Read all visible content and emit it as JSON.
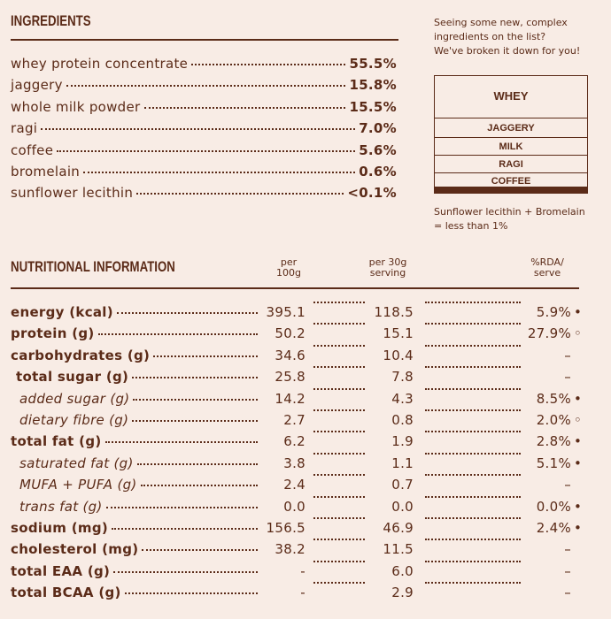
{
  "ingredients": {
    "title": "INGREDIENTS",
    "items": [
      {
        "name": "whey protein concentrate",
        "value": "55.5%"
      },
      {
        "name": "jaggery",
        "value": "15.8%"
      },
      {
        "name": "whole milk powder",
        "value": "15.5%"
      },
      {
        "name": "ragi",
        "value": "7.0%"
      },
      {
        "name": "coffee",
        "value": "5.6%"
      },
      {
        "name": "bromelain",
        "value": "0.6%"
      },
      {
        "name": "sunflower lecithin",
        "value": "<0.1%"
      }
    ]
  },
  "note": {
    "lines": [
      "Seeing some new, complex",
      "ingredients on the list?",
      "We've broken it down for you!"
    ]
  },
  "diagram": {
    "top": "WHEY",
    "layers": [
      "JAGGERY",
      "MILK",
      "RAGI",
      "COFFEE"
    ],
    "caption": [
      "Sunflower lecithin + Bromelain",
      "= less than 1%"
    ]
  },
  "nutrition": {
    "title": "NUTRITIONAL INFORMATION",
    "columns": [
      [
        "per",
        "100g"
      ],
      [
        "per 30g",
        "serving"
      ],
      [
        "%RDA/",
        "serve"
      ]
    ],
    "rows": [
      {
        "name": "energy (kcal)",
        "per100": "395.1",
        "per30": "118.5",
        "rda": "5.9%",
        "marker": "•"
      },
      {
        "name": "protein (g)",
        "per100": "50.2",
        "per30": "15.1",
        "rda": "27.9%",
        "marker": "◦"
      },
      {
        "name": "carbohydrates (g)",
        "per100": "34.6",
        "per30": "10.4",
        "rda": "–"
      },
      {
        "name": "total sugar (g)",
        "per100": "25.8",
        "per30": "7.8",
        "rda": "–",
        "indent": 1
      },
      {
        "name": "added sugar (g)",
        "per100": "14.2",
        "per30": "4.3",
        "rda": "8.5%",
        "marker": "•",
        "indent": 2,
        "italic": true
      },
      {
        "name": "dietary fibre (g)",
        "per100": "2.7",
        "per30": "0.8",
        "rda": "2.0%",
        "marker": "◦",
        "indent": 2,
        "italic": true
      },
      {
        "name": "total fat (g)",
        "per100": "6.2",
        "per30": "1.9",
        "rda": "2.8%",
        "marker": "•"
      },
      {
        "name": "saturated fat (g)",
        "per100": "3.8",
        "per30": "1.1",
        "rda": "5.1%",
        "marker": "•",
        "indent": 2,
        "italic": true
      },
      {
        "name": "MUFA + PUFA (g)",
        "per100": "2.4",
        "per30": "0.7",
        "rda": "–",
        "indent": 2,
        "italic": true
      },
      {
        "name": "trans fat (g)",
        "per100": "0.0",
        "per30": "0.0",
        "rda": "0.0%",
        "marker": "•",
        "indent": 2,
        "italic": true
      },
      {
        "name": "sodium (mg)",
        "per100": "156.5",
        "per30": "46.9",
        "rda": "2.4%",
        "marker": "•"
      },
      {
        "name": "cholesterol (mg)",
        "per100": "38.2",
        "per30": "11.5",
        "rda": "–"
      },
      {
        "name": "total EAA (g)",
        "per100": "-",
        "per30": "6.0",
        "rda": "–"
      },
      {
        "name": "total BCAA (g)",
        "per100": "-",
        "per30": "2.9",
        "rda": "–"
      }
    ]
  }
}
